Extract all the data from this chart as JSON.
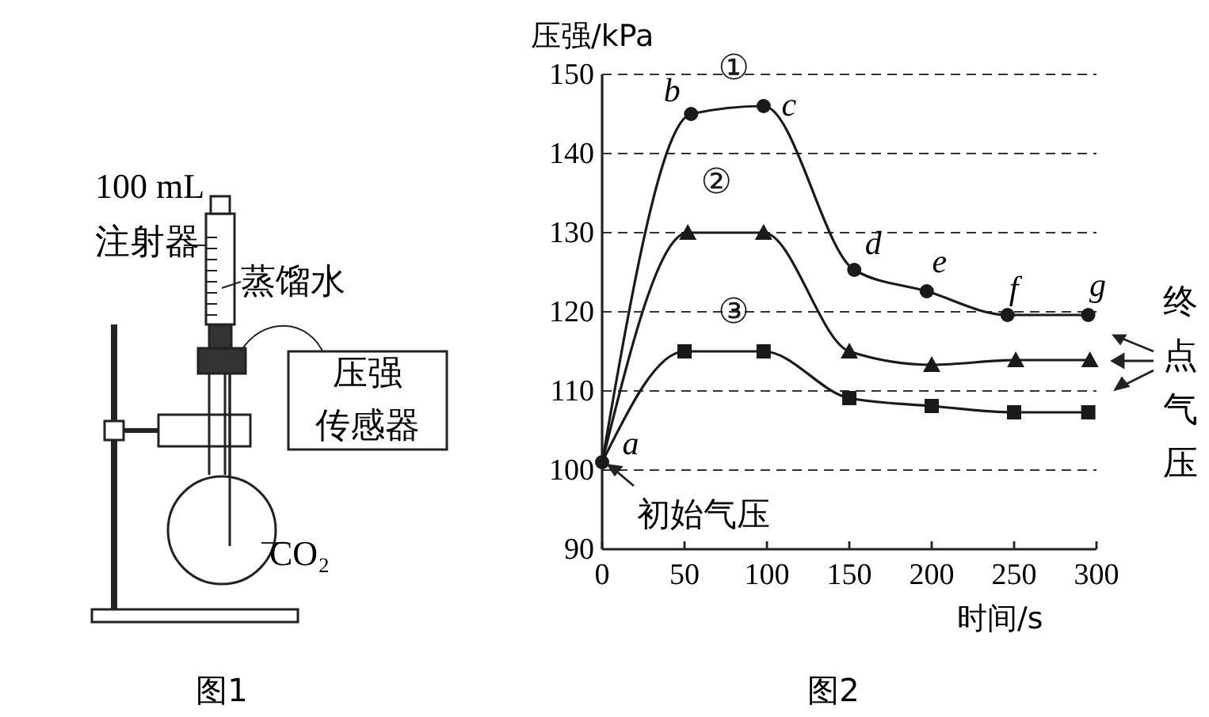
{
  "chart_data": [
    {
      "type": "other",
      "title": "图1",
      "annotations": [
        "100 mL",
        "注射器",
        "蒸馏水",
        "压强",
        "传感器",
        "CO₂"
      ]
    },
    {
      "type": "line",
      "title": "图2",
      "xlabel": "时间/s",
      "ylabel": "压强/kPa",
      "xlim": [
        0,
        300
      ],
      "xticks": [
        0,
        50,
        100,
        150,
        200,
        250,
        300
      ],
      "ylim": [
        90,
        150
      ],
      "yticks": [
        90,
        100,
        110,
        120,
        130,
        140,
        150
      ],
      "grid": "y",
      "line_style": "solid",
      "series": [
        {
          "name": "①",
          "color": "#1a1a1a",
          "marker": "circle",
          "x": [
            0,
            54,
            98,
            153,
            197,
            246,
            295
          ],
          "values": [
            101,
            145,
            146,
            125.3,
            122.6,
            119.6,
            119.6
          ]
        },
        {
          "name": "②",
          "color": "#1a1a1a",
          "marker": "triangle",
          "x": [
            0,
            52,
            98,
            150,
            200,
            251,
            296
          ],
          "values": [
            101,
            130,
            130,
            115,
            113.3,
            113.9,
            113.9
          ]
        },
        {
          "name": "③",
          "color": "#1a1a1a",
          "marker": "square",
          "x": [
            0,
            50,
            98,
            150,
            200,
            250,
            295
          ],
          "values": [
            101,
            115,
            115,
            109.1,
            108.1,
            107.3,
            107.3
          ]
        }
      ],
      "annotations": [
        {
          "text": "a",
          "x": 0,
          "y": 101
        },
        {
          "text": "b",
          "x": 54,
          "y": 145
        },
        {
          "text": "c",
          "x": 98,
          "y": 146
        },
        {
          "text": "d",
          "x": 153,
          "y": 125.3
        },
        {
          "text": "e",
          "x": 197,
          "y": 122.6
        },
        {
          "text": "f",
          "x": 246,
          "y": 119.6
        },
        {
          "text": "g",
          "x": 295,
          "y": 119.6
        },
        {
          "text": "初始气压",
          "x": 0,
          "y": 101
        },
        "终点气压"
      ]
    }
  ]
}
